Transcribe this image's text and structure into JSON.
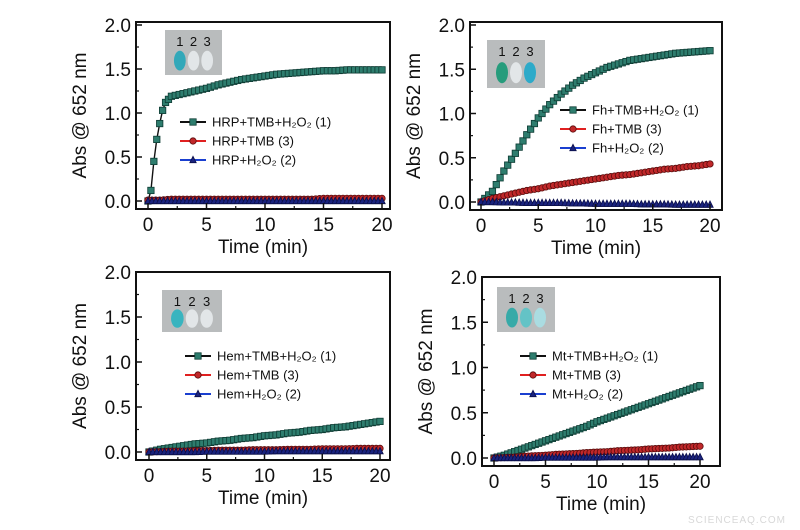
{
  "watermark": "SCIENCEAQ.COM",
  "chart_data": [
    {
      "type": "line",
      "xlabel": "Time (min)",
      "ylabel": "Abs @ 652 nm",
      "xlim": [
        0,
        20
      ],
      "ylim": [
        0,
        2.0
      ],
      "xticks": [
        "0",
        "5",
        "10",
        "15",
        "20"
      ],
      "yticks": [
        "0.0",
        "0.5",
        "1.0",
        "1.5",
        "2.0"
      ],
      "legend_placement": "center-right",
      "inset": {
        "labels": [
          "1",
          "2",
          "3"
        ],
        "tube_colors": [
          "#2aa7b8",
          "#e4e8ea",
          "#e4e8ea"
        ]
      },
      "series": [
        {
          "name": "HRP+TMB+H₂O₂ (1)",
          "color": "#2e7d6e",
          "line": "#111111",
          "marker": "square",
          "x": [
            0,
            0.25,
            0.5,
            0.75,
            1,
            1.25,
            1.5,
            2,
            3,
            4,
            5,
            6,
            7,
            8,
            9,
            10,
            11,
            12,
            13,
            14,
            15,
            16,
            17,
            18,
            19,
            20
          ],
          "y": [
            0,
            0.12,
            0.45,
            0.7,
            0.88,
            1.03,
            1.12,
            1.19,
            1.22,
            1.25,
            1.28,
            1.32,
            1.35,
            1.38,
            1.4,
            1.42,
            1.44,
            1.45,
            1.46,
            1.47,
            1.48,
            1.48,
            1.49,
            1.49,
            1.49,
            1.49
          ]
        },
        {
          "name": "HRP+TMB (3)",
          "color": "#c0282a",
          "line": "#e02020",
          "marker": "circle",
          "x": [
            0,
            1,
            2,
            3,
            4,
            5,
            6,
            7,
            8,
            9,
            10,
            11,
            12,
            13,
            14,
            15,
            16,
            17,
            18,
            19,
            20
          ],
          "y": [
            0.01,
            0.01,
            0.02,
            0.02,
            0.02,
            0.02,
            0.02,
            0.02,
            0.02,
            0.02,
            0.02,
            0.02,
            0.02,
            0.02,
            0.02,
            0.03,
            0.03,
            0.03,
            0.03,
            0.03,
            0.03
          ]
        },
        {
          "name": "HRP+H₂O₂ (2)",
          "color": "#1a237e",
          "line": "#1a3fd0",
          "marker": "triangle",
          "x": [
            0,
            1,
            2,
            3,
            4,
            5,
            6,
            7,
            8,
            9,
            10,
            11,
            12,
            13,
            14,
            15,
            16,
            17,
            18,
            19,
            20
          ],
          "y": [
            0,
            0,
            0,
            0,
            0,
            0,
            0,
            0,
            0,
            0,
            0,
            0,
            0,
            0,
            0,
            0,
            0,
            0,
            0,
            0,
            0
          ]
        }
      ]
    },
    {
      "type": "line",
      "xlabel": "Time (min)",
      "ylabel": "Abs @ 652 nm",
      "xlim": [
        0,
        20
      ],
      "ylim": [
        0,
        2.0
      ],
      "xticks": [
        "0",
        "5",
        "10",
        "15",
        "20"
      ],
      "yticks": [
        "0.0",
        "0.5",
        "1.0",
        "1.5",
        "2.0"
      ],
      "legend_placement": "center-right",
      "inset": {
        "labels": [
          "1",
          "2",
          "3"
        ],
        "tube_colors": [
          "#1f9a78",
          "#e4e8ea",
          "#25a9c9"
        ]
      },
      "series": [
        {
          "name": "Fh+TMB+H₂O₂ (1)",
          "color": "#2e7d6e",
          "line": "#111111",
          "marker": "square",
          "x": [
            0,
            1,
            2,
            3,
            4,
            5,
            6,
            7,
            8,
            9,
            10,
            11,
            12,
            13,
            14,
            15,
            16,
            17,
            18,
            19,
            20
          ],
          "y": [
            0,
            0.12,
            0.35,
            0.55,
            0.76,
            0.95,
            1.1,
            1.22,
            1.32,
            1.4,
            1.46,
            1.52,
            1.56,
            1.6,
            1.62,
            1.64,
            1.66,
            1.68,
            1.69,
            1.7,
            1.71
          ]
        },
        {
          "name": "Fh+TMB (3)",
          "color": "#c0282a",
          "line": "#e02020",
          "marker": "circle",
          "x": [
            0,
            1,
            2,
            3,
            4,
            5,
            6,
            7,
            8,
            9,
            10,
            11,
            12,
            13,
            14,
            15,
            16,
            17,
            18,
            19,
            20
          ],
          "y": [
            0,
            0.04,
            0.07,
            0.1,
            0.13,
            0.15,
            0.18,
            0.2,
            0.22,
            0.24,
            0.26,
            0.28,
            0.3,
            0.31,
            0.33,
            0.35,
            0.37,
            0.38,
            0.4,
            0.41,
            0.43
          ]
        },
        {
          "name": "Fh+H₂O₂ (2)",
          "color": "#1a237e",
          "line": "#1a3fd0",
          "marker": "triangle",
          "x": [
            0,
            1,
            2,
            3,
            4,
            5,
            6,
            7,
            8,
            9,
            10,
            11,
            12,
            13,
            14,
            15,
            16,
            17,
            18,
            19,
            20
          ],
          "y": [
            0,
            0,
            -0.005,
            -0.005,
            -0.01,
            -0.01,
            -0.01,
            -0.01,
            -0.015,
            -0.015,
            -0.02,
            -0.02,
            -0.02,
            -0.02,
            -0.025,
            -0.025,
            -0.025,
            -0.03,
            -0.03,
            -0.03,
            -0.03
          ]
        }
      ]
    },
    {
      "type": "line",
      "xlabel": "Time (min)",
      "ylabel": "Abs @ 652 nm",
      "xlim": [
        0,
        20
      ],
      "ylim": [
        0,
        2.0
      ],
      "xticks": [
        "0",
        "5",
        "10",
        "15",
        "20"
      ],
      "yticks": [
        "0.0",
        "0.5",
        "1.0",
        "1.5",
        "2.0"
      ],
      "legend_placement": "center-right",
      "inset": {
        "labels": [
          "1",
          "2",
          "3"
        ],
        "tube_colors": [
          "#31b3bf",
          "#e4e8ea",
          "#e4e8ea"
        ]
      },
      "series": [
        {
          "name": "Hem+TMB+H₂O₂ (1)",
          "color": "#2e7d6e",
          "line": "#111111",
          "marker": "square",
          "x": [
            0,
            1,
            2,
            3,
            4,
            5,
            6,
            7,
            8,
            9,
            10,
            11,
            12,
            13,
            14,
            15,
            16,
            17,
            18,
            19,
            20
          ],
          "y": [
            0,
            0.03,
            0.05,
            0.07,
            0.09,
            0.1,
            0.12,
            0.13,
            0.15,
            0.16,
            0.18,
            0.19,
            0.21,
            0.22,
            0.24,
            0.25,
            0.27,
            0.28,
            0.3,
            0.32,
            0.34
          ]
        },
        {
          "name": "Hem+TMB (3)",
          "color": "#c0282a",
          "line": "#e02020",
          "marker": "circle",
          "x": [
            0,
            1,
            2,
            3,
            4,
            5,
            6,
            7,
            8,
            9,
            10,
            11,
            12,
            13,
            14,
            15,
            16,
            17,
            18,
            19,
            20
          ],
          "y": [
            0,
            0.005,
            0.01,
            0.01,
            0.015,
            0.015,
            0.02,
            0.02,
            0.02,
            0.025,
            0.025,
            0.025,
            0.03,
            0.03,
            0.03,
            0.035,
            0.035,
            0.035,
            0.04,
            0.04,
            0.04
          ]
        },
        {
          "name": "Hem+H₂O₂ (2)",
          "color": "#1a237e",
          "line": "#1a3fd0",
          "marker": "triangle",
          "x": [
            0,
            1,
            2,
            3,
            4,
            5,
            6,
            7,
            8,
            9,
            10,
            11,
            12,
            13,
            14,
            15,
            16,
            17,
            18,
            19,
            20
          ],
          "y": [
            0,
            0,
            0,
            0,
            0,
            0.005,
            0.005,
            0.005,
            0.005,
            0.005,
            0.005,
            0.01,
            0.01,
            0.01,
            0.01,
            0.01,
            0.01,
            0.01,
            0.01,
            0.01,
            0.01
          ]
        }
      ]
    },
    {
      "type": "line",
      "xlabel": "Time (min)",
      "ylabel": "Abs @ 652 nm",
      "xlim": [
        0,
        20
      ],
      "ylim": [
        0,
        2.0
      ],
      "xticks": [
        "0",
        "5",
        "10",
        "15",
        "20"
      ],
      "yticks": [
        "0.0",
        "0.5",
        "1.0",
        "1.5",
        "2.0"
      ],
      "legend_placement": "center-right",
      "inset": {
        "labels": [
          "1",
          "2",
          "3"
        ],
        "tube_colors": [
          "#2fa9a6",
          "#5fc3c6",
          "#a9dde3"
        ]
      },
      "series": [
        {
          "name": "Mt+TMB+H₂O₂ (1)",
          "color": "#2e7d6e",
          "line": "#111111",
          "marker": "square",
          "x": [
            0,
            1,
            2,
            3,
            4,
            5,
            6,
            7,
            8,
            9,
            10,
            11,
            12,
            13,
            14,
            15,
            16,
            17,
            18,
            19,
            20
          ],
          "y": [
            0,
            0.03,
            0.07,
            0.11,
            0.15,
            0.19,
            0.23,
            0.27,
            0.31,
            0.35,
            0.4,
            0.44,
            0.48,
            0.52,
            0.56,
            0.6,
            0.64,
            0.68,
            0.72,
            0.76,
            0.8
          ]
        },
        {
          "name": "Mt+TMB (3)",
          "color": "#c0282a",
          "line": "#e02020",
          "marker": "circle",
          "x": [
            0,
            1,
            2,
            3,
            4,
            5,
            6,
            7,
            8,
            9,
            10,
            11,
            12,
            13,
            14,
            15,
            16,
            17,
            18,
            19,
            20
          ],
          "y": [
            0,
            0.005,
            0.01,
            0.02,
            0.025,
            0.03,
            0.04,
            0.045,
            0.05,
            0.06,
            0.065,
            0.07,
            0.08,
            0.085,
            0.09,
            0.1,
            0.105,
            0.11,
            0.12,
            0.125,
            0.13
          ]
        },
        {
          "name": "Mt+H₂O₂ (2)",
          "color": "#1a237e",
          "line": "#1a3fd0",
          "marker": "triangle",
          "x": [
            0,
            1,
            2,
            3,
            4,
            5,
            6,
            7,
            8,
            9,
            10,
            11,
            12,
            13,
            14,
            15,
            16,
            17,
            18,
            19,
            20
          ],
          "y": [
            0,
            0,
            0,
            0,
            0,
            0.005,
            0.005,
            0.005,
            0.005,
            0.005,
            0.005,
            0.01,
            0.01,
            0.01,
            0.01,
            0.01,
            0.01,
            0.01,
            0.01,
            0.01,
            0.01
          ]
        }
      ]
    }
  ]
}
